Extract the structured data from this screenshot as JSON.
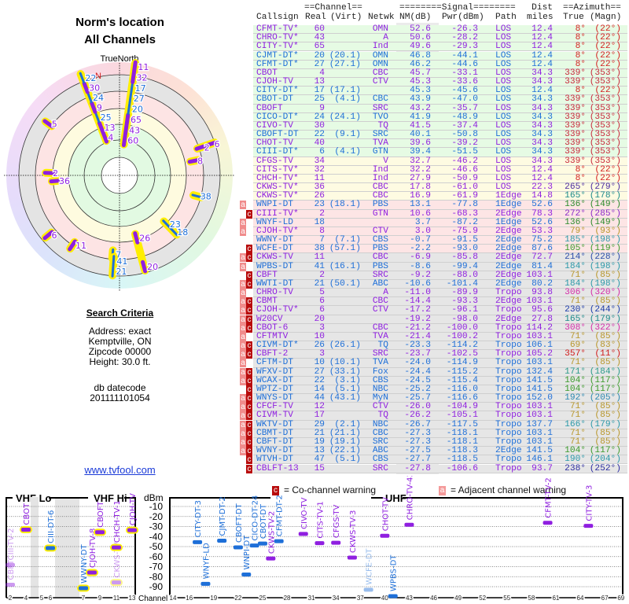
{
  "header": {
    "title_line1": "Norm's location",
    "title_line2": "All Channels"
  },
  "polar": {
    "true_north_label": "TrueNorth",
    "magnetic_north_label": "N",
    "min_nm_shown": -20
  },
  "search": {
    "heading": "Search Criteria",
    "address": "Address: exact",
    "city": "Kemptville, ON",
    "zipcode": "Zipcode 00000",
    "height": "Height: 30.0 ft.",
    "db_label": "db datecode",
    "db_value": "201111101054"
  },
  "link": {
    "text": "www.tvfool.com"
  },
  "table": {
    "group_channel": "==Channel==",
    "group_signal": "========Signal========",
    "group_dist": "Dist",
    "group_azimuth": "==Azimuth==",
    "col_callsign": "Callsign",
    "col_real": "Real",
    "col_virt": "(Virt)",
    "col_netwk": "Netwk",
    "col_nm": "NM(dB)",
    "col_pwr": "Pwr(dBm)",
    "col_path": "Path",
    "col_miles": "miles",
    "col_true": "True",
    "col_magn": "(Magn)",
    "fields": [
      "warn",
      "kind",
      "band",
      "callsign",
      "real",
      "virt",
      "netwk",
      "nm",
      "pwr",
      "path",
      "miles",
      "true",
      "magn"
    ],
    "rows": [
      [
        "",
        "a",
        "g",
        "CFMT-TV*",
        "60",
        "",
        "OMN",
        "52.6",
        "-26.3",
        "LOS",
        "12.4",
        "8°",
        "(22°)"
      ],
      [
        "",
        "a",
        "g",
        "CHRO-TV*",
        "43",
        "",
        "A",
        "50.6",
        "-28.2",
        "LOS",
        "12.4",
        "8°",
        "(22°)"
      ],
      [
        "",
        "a",
        "g",
        "CITY-TV*",
        "65",
        "",
        "Ind",
        "49.6",
        "-29.3",
        "LOS",
        "12.4",
        "8°",
        "(22°)"
      ],
      [
        "",
        "d",
        "g",
        "CJMT-DT*",
        "20",
        "(20.1)",
        "OMN",
        "46.8",
        "-44.1",
        "LOS",
        "12.4",
        "8°",
        "(22°)"
      ],
      [
        "",
        "d",
        "g",
        "CFMT-DT*",
        "27",
        "(27.1)",
        "OMN",
        "46.2",
        "-44.6",
        "LOS",
        "12.4",
        "8°",
        "(22°)"
      ],
      [
        "",
        "a",
        "g",
        "CBOT",
        "4",
        "",
        "CBC",
        "45.7",
        "-33.1",
        "LOS",
        "34.3",
        "339°",
        "(353°)"
      ],
      [
        "",
        "a",
        "g",
        "CJOH-TV",
        "13",
        "",
        "CTV",
        "45.3",
        "-33.6",
        "LOS",
        "34.3",
        "339°",
        "(353°)"
      ],
      [
        "",
        "d",
        "g",
        "CITY-DT*",
        "17",
        "(17.1)",
        "",
        "45.3",
        "-45.6",
        "LOS",
        "12.4",
        "8°",
        "(22°)"
      ],
      [
        "",
        "d",
        "g",
        "CBOT-DT",
        "25",
        "(4.1)",
        "CBC",
        "43.9",
        "-47.0",
        "LOS",
        "34.3",
        "339°",
        "(353°)"
      ],
      [
        "",
        "a",
        "g",
        "CBOFT",
        "9",
        "",
        "SRC",
        "43.2",
        "-35.7",
        "LOS",
        "34.3",
        "339°",
        "(353°)"
      ],
      [
        "",
        "d",
        "g",
        "CICO-DT*",
        "24",
        "(24.1)",
        "TVO",
        "41.9",
        "-48.9",
        "LOS",
        "34.3",
        "339°",
        "(353°)"
      ],
      [
        "",
        "a",
        "g",
        "CIVO-TV",
        "30",
        "",
        "TQ",
        "41.5",
        "-37.4",
        "LOS",
        "34.3",
        "339°",
        "(353°)"
      ],
      [
        "",
        "d",
        "g",
        "CBOFT-DT",
        "22",
        "(9.1)",
        "SRC",
        "40.1",
        "-50.8",
        "LOS",
        "34.3",
        "339°",
        "(353°)"
      ],
      [
        "",
        "a",
        "g",
        "CHOT-TV",
        "40",
        "",
        "TVA",
        "39.6",
        "-39.2",
        "LOS",
        "34.3",
        "339°",
        "(353°)"
      ],
      [
        "",
        "d",
        "g",
        "CIII-DT*",
        "6",
        "(4.1)",
        "GTN",
        "39.4",
        "-51.5",
        "LOS",
        "34.3",
        "339°",
        "(353°)"
      ],
      [
        "",
        "a",
        "y",
        "CFGS-TV",
        "34",
        "",
        "V",
        "32.7",
        "-46.2",
        "LOS",
        "34.3",
        "339°",
        "(353°)"
      ],
      [
        "",
        "a",
        "y",
        "CITS-TV*",
        "32",
        "",
        "Ind",
        "32.2",
        "-46.6",
        "LOS",
        "12.4",
        "8°",
        "(22°)"
      ],
      [
        "",
        "a",
        "y",
        "CHCH-TV*",
        "11",
        "",
        "Ind",
        "27.9",
        "-50.9",
        "LOS",
        "12.4",
        "8°",
        "(22°)"
      ],
      [
        "",
        "a",
        "y",
        "CKWS-TV*",
        "36",
        "",
        "CBC",
        "17.8",
        "-61.0",
        "LOS",
        "22.3",
        "265°",
        "(279°)"
      ],
      [
        "",
        "a",
        "y",
        "CKWS-TV*",
        "26",
        "",
        "CBC",
        "16.9",
        "-61.9",
        "1Edge",
        "14.8",
        "165°",
        "(178°)"
      ],
      [
        "a",
        "d",
        "p",
        "WNPI-DT",
        "23",
        "(18.1)",
        "PBS",
        "13.1",
        "-77.8",
        "1Edge",
        "52.6",
        "136°",
        "(149°)"
      ],
      [
        "c",
        "a",
        "p",
        "CIII-TV*",
        "2",
        "",
        "GTN",
        "10.6",
        "-68.3",
        "2Edge",
        "78.3",
        "272°",
        "(285°)"
      ],
      [
        "a",
        "d",
        "p",
        "WNYF-LD",
        "18",
        "",
        "",
        "3.7",
        "-87.2",
        "1Edge",
        "52.6",
        "136°",
        "(149°)"
      ],
      [
        "a",
        "a",
        "p",
        "CJOH-TV*",
        "8",
        "",
        "CTV",
        "3.0",
        "-75.9",
        "2Edge",
        "53.3",
        "79°",
        "(93°)"
      ],
      [
        "",
        "d",
        "p",
        "WWNY-DT",
        "7",
        "(7.1)",
        "CBS",
        "-0.7",
        "-91.5",
        "2Edge",
        "75.2",
        "185°",
        "(198°)"
      ],
      [
        "c",
        "d",
        "p",
        "WCFE-DT",
        "38",
        "(57.1)",
        "PBS",
        "-2.2",
        "-93.0",
        "2Edge",
        "87.6",
        "105°",
        "(119°)"
      ],
      [
        "ac",
        "a",
        "x",
        "CKWS-TV",
        "11",
        "",
        "CBC",
        "-6.9",
        "-85.8",
        "2Edge",
        "72.7",
        "214°",
        "(228°)"
      ],
      [
        "a",
        "d",
        "x",
        "WPBS-DT",
        "41",
        "(16.1)",
        "PBS",
        "-8.6",
        "-99.4",
        "2Edge",
        "81.4",
        "184°",
        "(198°)"
      ],
      [
        "c",
        "a",
        "x",
        "CBFT",
        "2",
        "",
        "SRC",
        "-9.2",
        "-88.0",
        "2Edge",
        "103.1",
        "71°",
        "(85°)"
      ],
      [
        "ac",
        "d",
        "x",
        "WWTI-DT",
        "21",
        "(50.1)",
        "ABC",
        "-10.6",
        "-101.4",
        "2Edge",
        "80.2",
        "184°",
        "(198°)"
      ],
      [
        "a",
        "a",
        "x",
        "CHRO-TV",
        "5",
        "",
        "A",
        "-11.0",
        "-89.9",
        "Tropo",
        "93.8",
        "306°",
        "(320°)"
      ],
      [
        "ac",
        "a",
        "x",
        "CBMT",
        "6",
        "",
        "CBC",
        "-14.4",
        "-93.3",
        "2Edge",
        "103.1",
        "71°",
        "(85°)"
      ],
      [
        "ac",
        "a",
        "x",
        "CJOH-TV*",
        "6",
        "",
        "CTV",
        "-17.2",
        "-96.1",
        "Tropo",
        "95.6",
        "230°",
        "(244°)"
      ],
      [
        "ac",
        "a",
        "x",
        "W20CV",
        "20",
        "",
        "",
        "-19.2",
        "-98.0",
        "2Edge",
        "27.8",
        "165°",
        "(179°)"
      ],
      [
        "ac",
        "a",
        "x",
        "CBOT-6",
        "3",
        "",
        "CBC",
        "-21.2",
        "-100.0",
        "Tropo",
        "114.2",
        "308°",
        "(322°)"
      ],
      [
        "a",
        "a",
        "x",
        "CFTMTV",
        "10",
        "",
        "TVA",
        "-21.4",
        "-100.2",
        "Tropo",
        "103.1",
        "71°",
        "(85°)"
      ],
      [
        "ac",
        "d",
        "x",
        "CIVM-DT*",
        "26",
        "(26.1)",
        "TQ",
        "-23.3",
        "-114.2",
        "Tropo",
        "106.1",
        "69°",
        "(83°)"
      ],
      [
        "ac",
        "a",
        "x",
        "CBFT-2",
        "3",
        "",
        "SRC",
        "-23.7",
        "-102.5",
        "Tropo",
        "105.2",
        "357°",
        "(11°)"
      ],
      [
        "a",
        "d",
        "x",
        "CFTM-DT",
        "10",
        "(10.1)",
        "TVA",
        "-24.0",
        "-114.9",
        "Tropo",
        "103.1",
        "71°",
        "(85°)"
      ],
      [
        "ac",
        "d",
        "x",
        "WFXV-DT",
        "27",
        "(33.1)",
        "Fox",
        "-24.4",
        "-115.2",
        "Tropo",
        "132.4",
        "171°",
        "(184°)"
      ],
      [
        "ac",
        "d",
        "x",
        "WCAX-DT",
        "22",
        "(3.1)",
        "CBS",
        "-24.5",
        "-115.4",
        "Tropo",
        "141.5",
        "104°",
        "(117°)"
      ],
      [
        "c",
        "d",
        "x",
        "WPTZ-DT",
        "14",
        "(5.1)",
        "NBC",
        "-25.2",
        "-116.0",
        "Tropo",
        "141.5",
        "104°",
        "(117°)"
      ],
      [
        "ac",
        "d",
        "x",
        "WNYS-DT",
        "44",
        "(43.1)",
        "MyN",
        "-25.7",
        "-116.6",
        "Tropo",
        "152.0",
        "192°",
        "(205°)"
      ],
      [
        "ac",
        "a",
        "x",
        "CFCF-TV",
        "12",
        "",
        "CTV",
        "-26.0",
        "-104.9",
        "Tropo",
        "103.1",
        "71°",
        "(85°)"
      ],
      [
        "ac",
        "a",
        "x",
        "CIVM-TV",
        "17",
        "",
        "TQ",
        "-26.2",
        "-105.1",
        "Tropo",
        "103.1",
        "71°",
        "(85°)"
      ],
      [
        "ac",
        "d",
        "x",
        "WKTV-DT",
        "29",
        "(2.1)",
        "NBC",
        "-26.7",
        "-117.5",
        "Tropo",
        "137.7",
        "166°",
        "(179°)"
      ],
      [
        "ac",
        "d",
        "x",
        "CBMT-DT",
        "21",
        "(21.1)",
        "CBC",
        "-27.3",
        "-118.1",
        "Tropo",
        "103.1",
        "71°",
        "(85°)"
      ],
      [
        "ac",
        "d",
        "x",
        "CBFT-DT",
        "19",
        "(19.1)",
        "SRC",
        "-27.3",
        "-118.1",
        "Tropo",
        "103.1",
        "71°",
        "(85°)"
      ],
      [
        "ac",
        "d",
        "x",
        "WVNY-DT",
        "13",
        "(22.1)",
        "ABC",
        "-27.5",
        "-118.3",
        "2Edge",
        "141.5",
        "104°",
        "(117°)"
      ],
      [
        "c",
        "d",
        "x",
        "WTVH-DT",
        "47",
        "(5.1)",
        "CBS",
        "-27.7",
        "-118.5",
        "Tropo",
        "146.1",
        "190°",
        "(204°)"
      ],
      [
        "c",
        "a",
        "x",
        "CBLFT-13",
        "15",
        "",
        "SRC",
        "-27.8",
        "-106.6",
        "Tropo",
        "93.7",
        "238°",
        "(252°)"
      ]
    ]
  },
  "colors": {
    "analog": "#8f1fe0",
    "digital": "#1e6fd8",
    "band_g": "#e6fbe4",
    "band_y": "#fefbe2",
    "band_p": "#fde5e5",
    "band_x": "#e6e6e6",
    "warn_a": "#f08c8c",
    "warn_c": "#b80c0c",
    "halo": "#ffee00",
    "azimuth": {
      "8°": "#d42020",
      "339°": "#c8283c",
      "265°": "#4a2aa0",
      "165°": "#1a8a8a",
      "136°": "#2a8a2a",
      "272°": "#8a2ac8",
      "79°": "#b8962a",
      "71°": "#b8962a",
      "69°": "#b8962a",
      "185°": "#2a98a8",
      "184°": "#2a98a8",
      "105°": "#3a9a2a",
      "104°": "#3a9a2a",
      "214°": "#2a4aa8",
      "306°": "#d42aa8",
      "308°": "#d42aa8",
      "230°": "#1a3aa8",
      "357°": "#d01818",
      "171°": "#2a9a8a",
      "192°": "#2a88b0",
      "166°": "#2a98a8",
      "190°": "#2a98a8",
      "238°": "#2a2aa0"
    }
  },
  "legend": {
    "co_symbol": "c",
    "co_label": "= Co-channel warning",
    "adj_symbol": "a",
    "adj_label": "= Adjacent channel warning"
  },
  "chart_data": {
    "type": "scatter",
    "ylabel": "dBm",
    "xlabel": "Channel",
    "ylim": [
      -95,
      -5
    ],
    "y_ticks": [
      "-10",
      "-20",
      "-30",
      "-40",
      "-50",
      "-60",
      "-70",
      "-80",
      "-90"
    ],
    "sections": {
      "vhf_lo": "VHF Lo",
      "vhf_hi": "VHF Hi",
      "uhf": "UHF"
    },
    "vhf_ticks": [
      "2",
      "4",
      "5",
      "6",
      "7",
      "9",
      "11",
      "13"
    ],
    "uhf_ticks": [
      "14",
      "16",
      "19",
      "22",
      "25",
      "28",
      "31",
      "34",
      "37",
      "40",
      "43",
      "46",
      "49",
      "52",
      "55",
      "58",
      "61",
      "64",
      "67",
      "69"
    ],
    "vhf_points": [
      {
        "label": "CBFT",
        "channel": 2,
        "dbm": -88.0,
        "kind": "a",
        "faded": true,
        "halo": false
      },
      {
        "label": "CIII-TV-2",
        "channel": 2,
        "dbm": -68.3,
        "kind": "a",
        "faded": true,
        "halo": false
      },
      {
        "label": "CBOT",
        "channel": 4,
        "dbm": -33.1,
        "kind": "a",
        "faded": false,
        "halo": true
      },
      {
        "label": "CIII-DT-6",
        "channel": 6,
        "dbm": -51.5,
        "kind": "d",
        "faded": false,
        "halo": true
      },
      {
        "label": "WWNY-DT",
        "channel": 7,
        "dbm": -91.5,
        "kind": "d",
        "faded": false,
        "halo": true
      },
      {
        "label": "CJOH-TV-8",
        "channel": 8,
        "dbm": -75.9,
        "kind": "a",
        "faded": false,
        "halo": true
      },
      {
        "label": "CBOFT",
        "channel": 9,
        "dbm": -35.7,
        "kind": "a",
        "faded": false,
        "halo": true
      },
      {
        "label": "CKWS-TV",
        "channel": 11,
        "dbm": -85.8,
        "kind": "a",
        "faded": true,
        "halo": true
      },
      {
        "label": "CHCH-TV-1",
        "channel": 11,
        "dbm": -50.9,
        "kind": "a",
        "faded": false,
        "halo": true
      },
      {
        "label": "CJOH-TV",
        "channel": 13,
        "dbm": -33.6,
        "kind": "a",
        "faded": false,
        "halo": true
      }
    ],
    "uhf_points": [
      {
        "label": "CITY-DT-3",
        "channel": 17,
        "dbm": -45.6,
        "kind": "d",
        "faded": false
      },
      {
        "label": "WNYF-LD",
        "channel": 18,
        "dbm": -87.2,
        "kind": "d",
        "faded": false
      },
      {
        "label": "CJMT-DT-2",
        "channel": 20,
        "dbm": -44.1,
        "kind": "d",
        "faded": false
      },
      {
        "label": "CBOFT-DT",
        "channel": 22,
        "dbm": -50.8,
        "kind": "d",
        "faded": false
      },
      {
        "label": "WNPI-DT",
        "channel": 23,
        "dbm": -77.8,
        "kind": "d",
        "faded": false
      },
      {
        "label": "CICO-DT-24",
        "channel": 24,
        "dbm": -48.9,
        "kind": "d",
        "faded": false
      },
      {
        "label": "CBOT-DT",
        "channel": 25,
        "dbm": -47.0,
        "kind": "d",
        "faded": false
      },
      {
        "label": "CKWS-TV-2",
        "channel": 26,
        "dbm": -61.9,
        "kind": "a",
        "faded": false
      },
      {
        "label": "CFMT-DT-2",
        "channel": 27,
        "dbm": -44.6,
        "kind": "d",
        "faded": false
      },
      {
        "label": "CIVO-TV",
        "channel": 30,
        "dbm": -37.4,
        "kind": "a",
        "faded": false
      },
      {
        "label": "CITS-TV-1",
        "channel": 32,
        "dbm": -46.6,
        "kind": "a",
        "faded": false
      },
      {
        "label": "CFGS-TV",
        "channel": 34,
        "dbm": -46.2,
        "kind": "a",
        "faded": false
      },
      {
        "label": "CKWS-TV-3",
        "channel": 36,
        "dbm": -61.0,
        "kind": "a",
        "faded": false
      },
      {
        "label": "WCFE-DT",
        "channel": 38,
        "dbm": -93.0,
        "kind": "d",
        "faded": true
      },
      {
        "label": "CHOT-TV",
        "channel": 40,
        "dbm": -39.2,
        "kind": "a",
        "faded": false
      },
      {
        "label": "WPBS-DT",
        "channel": 41,
        "dbm": -99.4,
        "kind": "d",
        "faded": false
      },
      {
        "label": "CHRO-TV-43",
        "channel": 43,
        "dbm": -28.2,
        "kind": "a",
        "faded": false
      },
      {
        "label": "CFMT-TV-2",
        "channel": 60,
        "dbm": -26.3,
        "kind": "a",
        "faded": false
      },
      {
        "label": "CITY-TV-3",
        "channel": 65,
        "dbm": -29.3,
        "kind": "a",
        "faded": false
      }
    ]
  }
}
